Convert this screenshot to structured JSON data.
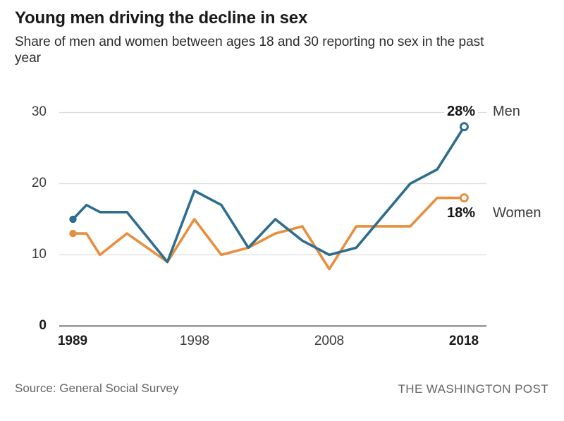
{
  "header": {
    "title": "Young men driving the decline in sex",
    "subtitle": "Share of men and women between ages 18 and 30 reporting no sex in the past year"
  },
  "footer": {
    "source_label": "Source: General Social Survey",
    "brand": "THE WASHINGTON POST"
  },
  "chart_data": {
    "type": "line",
    "title": "Young men driving the decline in sex",
    "subtitle": "Share of men and women between ages 18 and 30 reporting no sex in the past year",
    "xlabel": "",
    "ylabel": "",
    "xlim": [
      1989,
      2018
    ],
    "ylim": [
      0,
      30
    ],
    "grid": "horizontal",
    "legend_position": "line-end-labels",
    "y_ticks": [
      "30",
      "20",
      "10",
      "0"
    ],
    "y_tick_values": [
      30,
      20,
      10,
      0
    ],
    "x_ticks": [
      "1989",
      "1998",
      "2008",
      "2018"
    ],
    "x_tick_values": [
      1989,
      1998,
      2008,
      2018
    ],
    "series": [
      {
        "name": "Men",
        "color": "#2e6d8e",
        "end_label": "28%",
        "start_marker": "filled-dot",
        "end_marker": "open-circle",
        "x": [
          1989,
          1990,
          1991,
          1993,
          1996,
          1998,
          2000,
          2002,
          2004,
          2006,
          2008,
          2010,
          2014,
          2016,
          2018
        ],
        "values": [
          15,
          17,
          16,
          16,
          9,
          19,
          17,
          11,
          15,
          12,
          10,
          11,
          20,
          22,
          28
        ]
      },
      {
        "name": "Women",
        "color": "#e78f3e",
        "end_label": "18%",
        "start_marker": "filled-dot",
        "end_marker": "open-circle",
        "x": [
          1989,
          1990,
          1991,
          1993,
          1996,
          1998,
          2000,
          2002,
          2004,
          2006,
          2008,
          2010,
          2012,
          2014,
          2016,
          2018
        ],
        "values": [
          13,
          13,
          10,
          13,
          9,
          15,
          10,
          11,
          13,
          14,
          8,
          14,
          14,
          14,
          18,
          18
        ]
      }
    ],
    "annotations": {
      "men_value": "28%",
      "men_name": "Men",
      "women_value": "18%",
      "women_name": "Women"
    },
    "colors": {
      "men": "#2e6d8e",
      "women": "#e78f3e",
      "grid": "#dcdcdc",
      "axis": "#7d7d7d",
      "title": "#1a1a1a",
      "text": "#3d3d3d",
      "muted": "#666666"
    }
  }
}
